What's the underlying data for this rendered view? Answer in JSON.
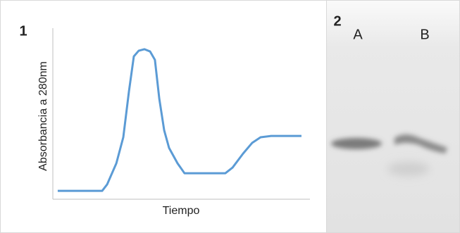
{
  "chart_data": {
    "type": "line",
    "panel_label": "1",
    "x_label": "Tiempo",
    "y_label": "Absorbancia a 280nm",
    "x": [
      1.9,
      19.2,
      21.1,
      24.7,
      27.4,
      29.6,
      31.5,
      33.4,
      35.6,
      37.8,
      39.7,
      41.4,
      43.3,
      45.2,
      48.5,
      51.2,
      67.1,
      69.9,
      74.0,
      77.5,
      80.8,
      84.9,
      96.7
    ],
    "series": [
      {
        "color": "#5b9bd5",
        "values": [
          4.9,
          4.9,
          8.6,
          21.0,
          36.2,
          63.0,
          83.5,
          86.8,
          87.7,
          86.4,
          81.5,
          58.8,
          40.3,
          30.0,
          21.0,
          15.2,
          15.2,
          18.5,
          26.7,
          32.9,
          36.2,
          37.0,
          37.0
        ]
      }
    ],
    "xlim": [
      0,
      100
    ],
    "ylim": [
      0,
      100
    ],
    "grid": false
  },
  "gel_panel": {
    "panel_label": "2",
    "lanes": [
      "A",
      "B"
    ]
  }
}
